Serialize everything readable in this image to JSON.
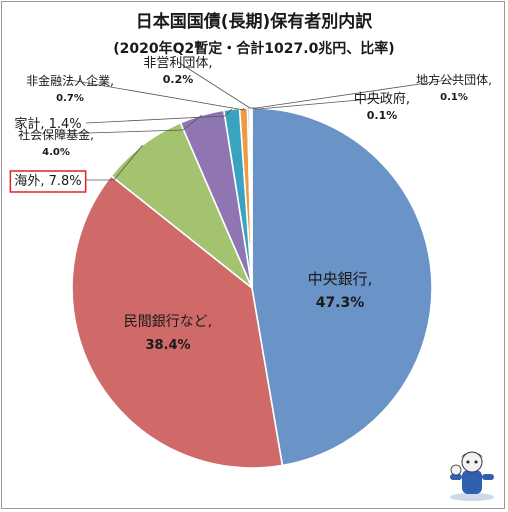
{
  "chart_data": {
    "type": "pie",
    "title": "日本国国債(長期)保有者別内訳",
    "subtitle": "(2020年Q2暫定・合計1027.0兆円、比率)",
    "slices": [
      {
        "label": "中央銀行,",
        "value": 47.3,
        "value_text": "47.3%",
        "color": "#6a93c8"
      },
      {
        "label": "民間銀行など,",
        "value": 38.4,
        "value_text": "38.4%",
        "color": "#cf6a69"
      },
      {
        "label": "海外,",
        "value": 7.8,
        "value_text": "7.8%",
        "color": "#a3c36f"
      },
      {
        "label": "社会保障基金,",
        "value": 4.0,
        "value_text": "4.0%",
        "color": "#8f76b2"
      },
      {
        "label": "家計,",
        "value": 1.4,
        "value_text": "1.4%",
        "color": "#3aa3bf"
      },
      {
        "label": "非金融法人企業,",
        "value": 0.7,
        "value_text": "0.7%",
        "color": "#ef9a43"
      },
      {
        "label": "非営利団体,",
        "value": 0.2,
        "value_text": "0.2%",
        "color": "#a9c3e3"
      },
      {
        "label": "地方公共団体,",
        "value": 0.1,
        "value_text": "0.1%",
        "color": "#e9a6a6"
      },
      {
        "label": "中央政府,",
        "value": 0.1,
        "value_text": "0.1%",
        "color": "#cfe0a8"
      }
    ],
    "highlighted_slice": "海外,",
    "highlight_color": "#d9262a",
    "legend": "none",
    "start": "top, clockwise, 中央銀行 first"
  }
}
